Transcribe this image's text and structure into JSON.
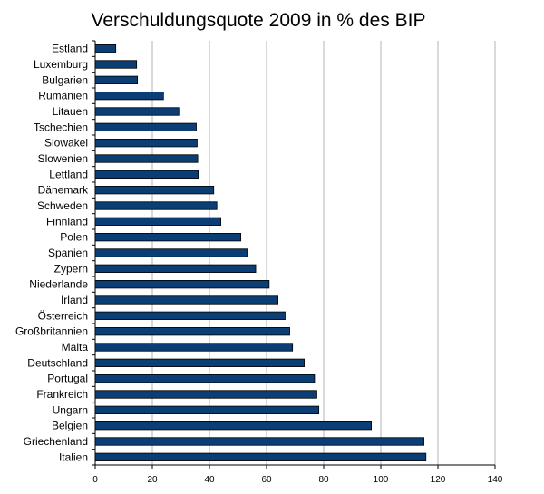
{
  "chart_data": {
    "type": "bar",
    "orientation": "horizontal",
    "title": "Verschuldungsquote 2009 in % des BIP",
    "categories": [
      "Estland",
      "Luxemburg",
      "Bulgarien",
      "Rumänien",
      "Litauen",
      "Tschechien",
      "Slowakei",
      "Slowenien",
      "Lettland",
      "Dänemark",
      "Schweden",
      "Finnland",
      "Polen",
      "Spanien",
      "Zypern",
      "Niederlande",
      "Irland",
      "Österreich",
      "Großbritannien",
      "Malta",
      "Deutschland",
      "Portugal",
      "Frankreich",
      "Ungarn",
      "Belgien",
      "Griechenland",
      "Italien"
    ],
    "values": [
      7.2,
      14.5,
      14.8,
      23.9,
      29.3,
      35.4,
      35.7,
      35.9,
      36.1,
      41.5,
      42.6,
      44.0,
      51.0,
      53.3,
      56.2,
      60.9,
      64.0,
      66.5,
      68.1,
      69.1,
      73.2,
      76.8,
      77.6,
      78.3,
      96.7,
      115.1,
      115.8
    ],
    "xlim": [
      0,
      140
    ],
    "xticks": [
      0,
      20,
      40,
      60,
      80,
      100,
      120,
      140
    ],
    "grid": true,
    "legend": "none",
    "bar_color": "#0b3e74",
    "grid_color": "#b3b3b3"
  }
}
